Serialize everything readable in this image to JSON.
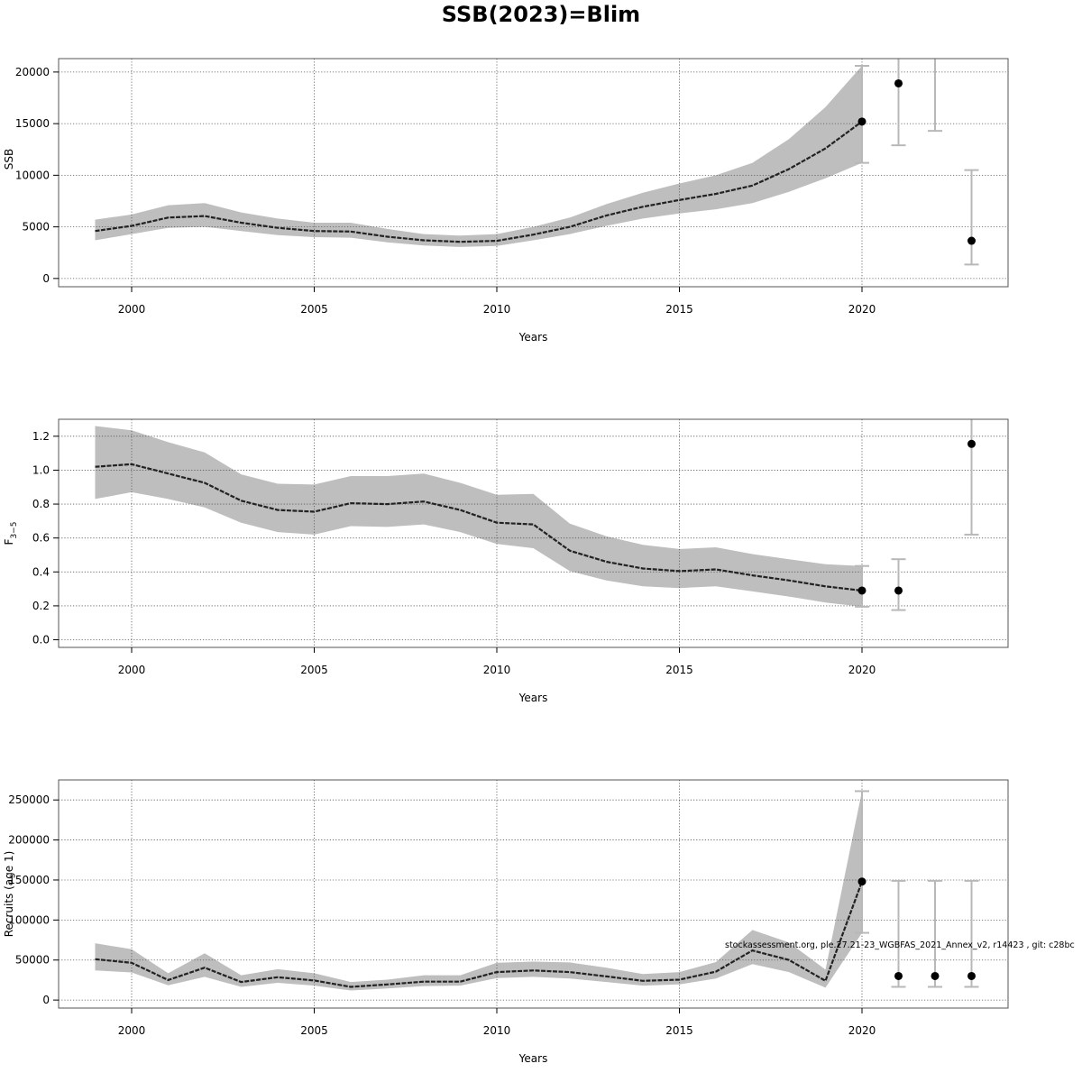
{
  "title": "SSB(2023)=Blim",
  "footnote": "stockassessment.org, ple.27.21-23_WGBFAS_2021_Annex_v2, r14423 , git: c28bc",
  "colors": {
    "band": "#bebebe",
    "line": "#222222",
    "errorbar": "#b8b8b8",
    "point": "#000000",
    "grid": "#555555"
  },
  "chart_data": [
    {
      "type": "line",
      "id": "ssb",
      "title": "SSB(2023)=Blim",
      "xlabel": "Years",
      "ylabel": "SSB",
      "xlim": [
        1998,
        2024
      ],
      "ylim": [
        -800,
        21300
      ],
      "xticks": [
        2000,
        2005,
        2010,
        2015,
        2020
      ],
      "xtick_labels": [
        "2000",
        "2005",
        "2010",
        "2015",
        "2020"
      ],
      "yticks": [
        0,
        5000,
        10000,
        15000,
        20000
      ],
      "ytick_labels": [
        "0",
        "5000",
        "10000",
        "15000",
        "20000"
      ],
      "grid": true,
      "series": [
        {
          "x": [
            1999,
            2000,
            2001,
            2002,
            2003,
            2004,
            2005,
            2006,
            2007,
            2008,
            2009,
            2010,
            2011,
            2012,
            2013,
            2014,
            2015,
            2016,
            2017,
            2018,
            2019,
            2020
          ],
          "y": [
            4600,
            5100,
            5900,
            6050,
            5400,
            4900,
            4600,
            4550,
            4050,
            3700,
            3550,
            3650,
            4250,
            5000,
            6100,
            6950,
            7600,
            8200,
            9000,
            10600,
            12600,
            15200
          ],
          "lower": [
            3700,
            4300,
            4900,
            5000,
            4600,
            4200,
            4000,
            3950,
            3500,
            3200,
            3050,
            3150,
            3700,
            4300,
            5100,
            5800,
            6300,
            6700,
            7300,
            8400,
            9700,
            11200
          ],
          "upper": [
            5700,
            6200,
            7100,
            7300,
            6400,
            5800,
            5400,
            5400,
            4800,
            4300,
            4150,
            4300,
            5000,
            5900,
            7200,
            8300,
            9200,
            10000,
            11200,
            13500,
            16600,
            20600
          ]
        }
      ],
      "forecast": [
        {
          "x": 2020,
          "y": 15200,
          "lower": 11200,
          "upper": 20600
        },
        {
          "x": 2021,
          "y": 18900,
          "lower": 12900,
          "upper": 21300
        },
        {
          "x": 2022,
          "lower": 14300,
          "upper": 21300
        },
        {
          "x": 2023,
          "y": 3650,
          "lower": 1350,
          "upper": 10500
        }
      ]
    },
    {
      "type": "line",
      "id": "f35",
      "title": "",
      "xlabel": "Years",
      "ylabel": "F",
      "ylabel_sub": "3−5",
      "xlim": [
        1998,
        2024
      ],
      "ylim": [
        -0.045,
        1.3
      ],
      "xticks": [
        2000,
        2005,
        2010,
        2015,
        2020
      ],
      "xtick_labels": [
        "2000",
        "2005",
        "2010",
        "2015",
        "2020"
      ],
      "yticks": [
        0,
        0.2,
        0.4,
        0.6,
        0.8,
        1.0,
        1.2
      ],
      "ytick_labels": [
        "0.0",
        "0.2",
        "0.4",
        "0.6",
        "0.8",
        "1.0",
        "1.2"
      ],
      "grid": true,
      "series": [
        {
          "x": [
            1999,
            2000,
            2001,
            2002,
            2003,
            2004,
            2005,
            2006,
            2007,
            2008,
            2009,
            2010,
            2011,
            2012,
            2013,
            2014,
            2015,
            2016,
            2017,
            2018,
            2019,
            2020
          ],
          "y": [
            1.02,
            1.035,
            0.98,
            0.925,
            0.82,
            0.765,
            0.755,
            0.805,
            0.8,
            0.815,
            0.765,
            0.69,
            0.68,
            0.525,
            0.46,
            0.42,
            0.405,
            0.415,
            0.38,
            0.35,
            0.315,
            0.29
          ],
          "lower": [
            0.83,
            0.87,
            0.83,
            0.78,
            0.69,
            0.635,
            0.62,
            0.67,
            0.665,
            0.68,
            0.635,
            0.565,
            0.54,
            0.405,
            0.35,
            0.315,
            0.305,
            0.315,
            0.285,
            0.255,
            0.22,
            0.195
          ],
          "upper": [
            1.26,
            1.235,
            1.165,
            1.105,
            0.975,
            0.92,
            0.915,
            0.965,
            0.965,
            0.98,
            0.925,
            0.855,
            0.86,
            0.685,
            0.61,
            0.56,
            0.535,
            0.545,
            0.505,
            0.475,
            0.445,
            0.435
          ]
        }
      ],
      "forecast": [
        {
          "x": 2020,
          "y": 0.29,
          "lower": 0.195,
          "upper": 0.435
        },
        {
          "x": 2021,
          "y": 0.29,
          "lower": 0.175,
          "upper": 0.475
        },
        {
          "x": 2023,
          "y": 1.155,
          "lower": 0.62,
          "upper": 1.3
        }
      ]
    },
    {
      "type": "line",
      "id": "recruits",
      "title": "",
      "xlabel": "Years",
      "ylabel": "Recruits (age 1)",
      "xlim": [
        1998,
        2024
      ],
      "ylim": [
        -10000,
        275000
      ],
      "xticks": [
        2000,
        2005,
        2010,
        2015,
        2020
      ],
      "xtick_labels": [
        "2000",
        "2005",
        "2010",
        "2015",
        "2020"
      ],
      "yticks": [
        0,
        50000,
        100000,
        150000,
        200000,
        250000
      ],
      "ytick_labels": [
        "0",
        "50000",
        "100000",
        "150000",
        "200000",
        "250000"
      ],
      "grid": true,
      "series": [
        {
          "x": [
            1999,
            2000,
            2001,
            2002,
            2003,
            2004,
            2005,
            2006,
            2007,
            2008,
            2009,
            2010,
            2011,
            2012,
            2013,
            2014,
            2015,
            2016,
            2017,
            2018,
            2019,
            2020
          ],
          "y": [
            51000,
            46500,
            25000,
            40500,
            22500,
            28500,
            24500,
            16500,
            19500,
            23000,
            23000,
            35000,
            37000,
            35000,
            29500,
            24000,
            25500,
            35500,
            62000,
            50000,
            24000,
            148000
          ],
          "lower": [
            37000,
            34500,
            18500,
            29000,
            16500,
            21500,
            18000,
            12000,
            14500,
            17500,
            18000,
            27500,
            29000,
            27000,
            22500,
            18000,
            19500,
            27000,
            45000,
            35000,
            15500,
            84000
          ],
          "upper": [
            71000,
            63500,
            33500,
            58500,
            31000,
            38500,
            33500,
            22500,
            25500,
            31000,
            31000,
            46500,
            48000,
            47000,
            40500,
            32500,
            35000,
            47500,
            87500,
            72000,
            38000,
            261000
          ]
        }
      ],
      "forecast": [
        {
          "x": 2020,
          "y": 148000,
          "lower": 84000,
          "upper": 261000
        },
        {
          "x": 2021,
          "y": 30000,
          "lower": 16500,
          "upper": 149000
        },
        {
          "x": 2022,
          "y": 30000,
          "lower": 16500,
          "upper": 149000
        },
        {
          "x": 2023,
          "y": 30000,
          "lower": 16500,
          "upper": 149000
        }
      ]
    }
  ]
}
